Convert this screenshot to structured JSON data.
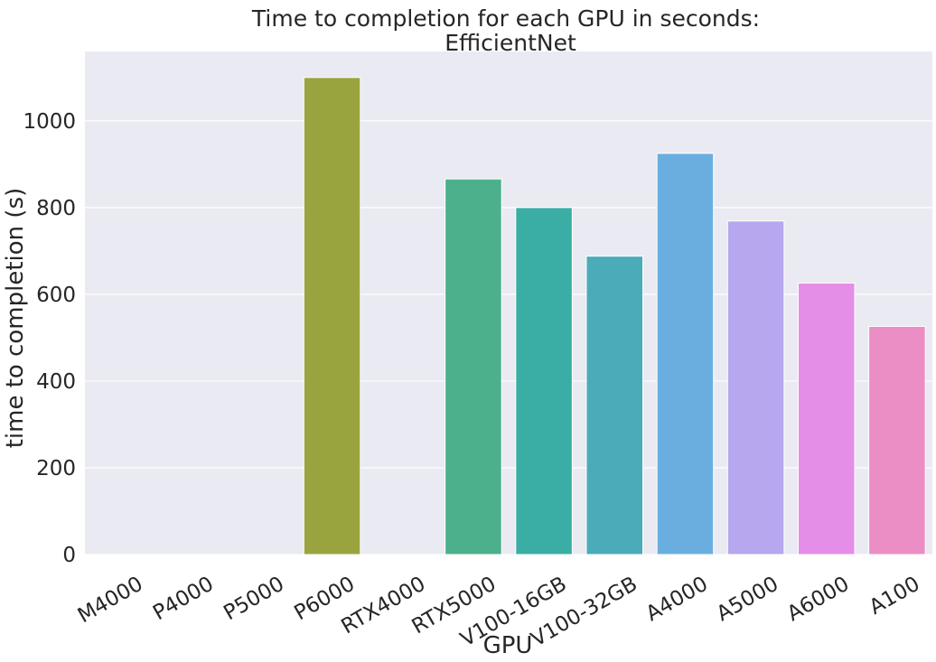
{
  "chart_data": {
    "type": "bar",
    "title": "Time to completion for each GPU in seconds:",
    "subtitle": "EfficientNet",
    "xlabel": "GPU",
    "ylabel": "time to completion (s)",
    "ylim": [
      0,
      1160
    ],
    "yticks": [
      0,
      200,
      400,
      600,
      800,
      1000
    ],
    "grid": true,
    "categories": [
      "M4000",
      "P4000",
      "P5000",
      "P6000",
      "RTX4000",
      "RTX5000",
      "V100-16GB",
      "V100-32GB",
      "A4000",
      "A5000",
      "A6000",
      "A100"
    ],
    "values": [
      0,
      0,
      0,
      1100,
      0,
      866,
      800,
      688,
      925,
      769,
      626,
      526
    ],
    "colors": [
      "#f77189",
      "#e08432",
      "#bb9832",
      "#9aa43f",
      "#50b131",
      "#4cb08d",
      "#3aada4",
      "#4aabb9",
      "#6aaee0",
      "#b6a7ef",
      "#e48ee7",
      "#eb8ec5"
    ]
  }
}
